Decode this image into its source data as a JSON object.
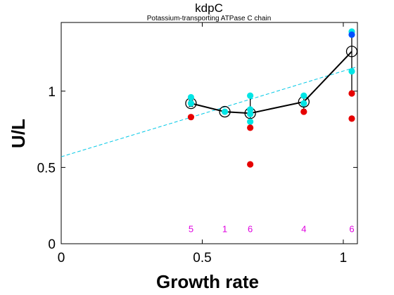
{
  "chart_data": {
    "type": "scatter",
    "title": "kdpC",
    "subtitle": "Potassium-transporting ATPase C chain",
    "xlabel": "Growth rate",
    "ylabel": "U/L",
    "xlim": [
      0,
      1.05
    ],
    "ylim": [
      0,
      1.45
    ],
    "xticks": [
      0,
      0.5,
      1
    ],
    "xtick_labels": [
      "0",
      "0.5",
      "1"
    ],
    "yticks": [
      0,
      0.5,
      1
    ],
    "ytick_labels": [
      "0",
      "0.5",
      "1"
    ],
    "grid": false,
    "colors": {
      "cyan_points": "#00e5e5",
      "red_points": "#e60000",
      "blue_points": "#0050ff",
      "mean_line": "#000000",
      "fit_line": "#00c8e6",
      "count_labels": "#e000e0"
    },
    "fit_line": {
      "x": [
        0,
        1.05
      ],
      "y": [
        0.57,
        1.16
      ]
    },
    "mean_series": {
      "x": [
        0.46,
        0.58,
        0.67,
        0.86,
        1.03
      ],
      "y": [
        0.92,
        0.865,
        0.855,
        0.93,
        1.26
      ],
      "err_low": [
        0.9,
        0.855,
        0.79,
        0.88,
        0.98
      ],
      "err_high": [
        0.94,
        0.875,
        0.97,
        0.98,
        1.37
      ]
    },
    "cyan_points": {
      "x": [
        0.46,
        0.46,
        0.58,
        0.67,
        0.67,
        0.67,
        0.67,
        0.86,
        0.86,
        1.03,
        1.03
      ],
      "y": [
        0.96,
        0.92,
        0.865,
        0.97,
        0.88,
        0.85,
        0.8,
        0.97,
        0.92,
        1.39,
        1.13
      ]
    },
    "red_points": {
      "x": [
        0.46,
        0.67,
        0.67,
        0.86,
        1.03,
        1.03
      ],
      "y": [
        0.83,
        0.76,
        0.52,
        0.865,
        0.985,
        0.82
      ]
    },
    "blue_points": {
      "x": [
        1.03
      ],
      "y": [
        1.37
      ]
    },
    "counts": {
      "x": [
        0.46,
        0.58,
        0.67,
        0.86,
        1.03
      ],
      "labels": [
        "5",
        "1",
        "6",
        "4",
        "6"
      ],
      "y": 0.1
    }
  }
}
